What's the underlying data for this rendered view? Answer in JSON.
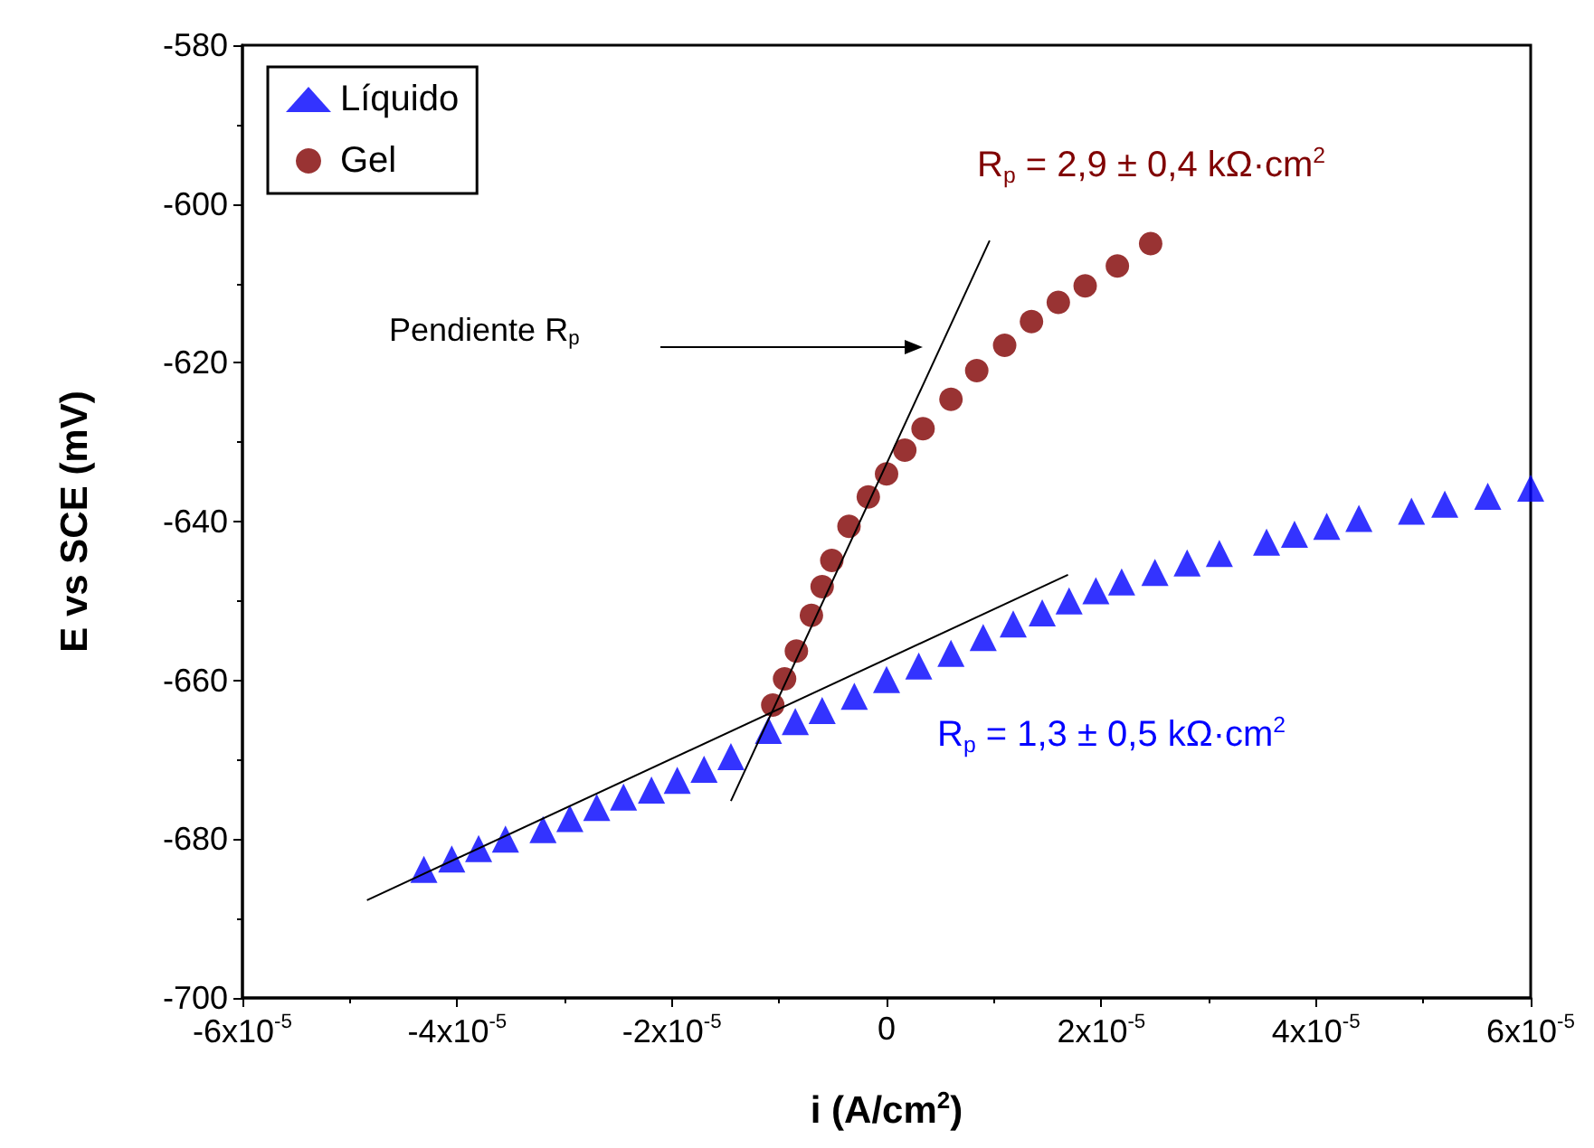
{
  "chart_data": {
    "type": "scatter",
    "xlabel": "i (A/cm$^{2}$)",
    "ylabel": "E vs SCE (mV)",
    "xlim": [
      -6e-05,
      6e-05
    ],
    "ylim": [
      -700,
      -580
    ],
    "xticks": [
      {
        "value": -6e-05,
        "label": "-6x10$^{-5}$"
      },
      {
        "value": -4e-05,
        "label": "-4x10$^{-5}$"
      },
      {
        "value": -2e-05,
        "label": "-2x10$^{-5}$"
      },
      0,
      {
        "value": 2e-05,
        "label": "2x10$^{-5}$"
      },
      {
        "value": 4e-05,
        "label": "4x10$^{-5}$"
      },
      {
        "value": 6e-05,
        "label": "6x10$^{-5}$"
      }
    ],
    "yticks": [
      -700,
      -680,
      -660,
      -640,
      -620,
      -600,
      -580
    ],
    "grid": false,
    "legend": "top left",
    "series": [
      {
        "name": "Líquido",
        "color": "#0000ff",
        "marker": "triangle",
        "x": [
          -4.31e-05,
          -4.05e-05,
          -3.8e-05,
          -3.55e-05,
          -3.2e-05,
          -2.95e-05,
          -2.7e-05,
          -2.45e-05,
          -2.19e-05,
          -1.95e-05,
          -1.7e-05,
          -1.45e-05,
          -1.1e-05,
          -8.5e-06,
          -6e-06,
          -3e-06,
          0,
          3e-06,
          6e-06,
          9e-06,
          1.18e-05,
          1.45e-05,
          1.7e-05,
          1.95e-05,
          2.19e-05,
          2.5e-05,
          2.8e-05,
          3.1e-05,
          3.54e-05,
          3.8e-05,
          4.1e-05,
          4.4e-05,
          4.89e-05,
          5.2e-05,
          5.6e-05,
          6e-05
        ],
        "values": [
          -683.8,
          -682.5,
          -681.2,
          -680,
          -678.8,
          -677.4,
          -676,
          -674.7,
          -673.8,
          -672.6,
          -671.2,
          -669.6,
          -666.3,
          -665.2,
          -663.8,
          -662,
          -659.9,
          -658.2,
          -656.6,
          -654.6,
          -652.9,
          -651.5,
          -650,
          -648.7,
          -647.6,
          -646.4,
          -645.2,
          -644,
          -642.6,
          -641.6,
          -640.6,
          -639.6,
          -638.7,
          -637.8,
          -636.8,
          -635.8
        ]
      },
      {
        "name": "Gel",
        "color": "#800000",
        "marker": "circle",
        "x": [
          -1.06e-05,
          -9.5e-06,
          -8.4e-06,
          -7e-06,
          -6e-06,
          -5.1e-06,
          -3.5e-06,
          -1.7e-06,
          0,
          1.7e-06,
          3.4e-06,
          6e-06,
          8.4e-06,
          1.1e-05,
          1.35e-05,
          1.6e-05,
          1.85e-05,
          2.15e-05,
          2.46e-05
        ],
        "values": [
          -663.1,
          -659.8,
          -656.3,
          -651.8,
          -648.2,
          -644.9,
          -640.6,
          -636.9,
          -634,
          -631,
          -628.3,
          -624.6,
          -621,
          -617.8,
          -614.8,
          -612.4,
          -610.3,
          -607.8,
          -605
        ]
      },
      {
        "type": "line",
        "color": "#000000",
        "marker": "none",
        "x": [
          -4.84e-05,
          1.69e-05
        ],
        "values": [
          -687.7,
          -646.7
        ]
      },
      {
        "type": "line",
        "color": "#000000",
        "marker": "none",
        "x": [
          -1.45e-05,
          9.6e-06
        ],
        "values": [
          -675.2,
          -604.6
        ]
      }
    ],
    "annotations": [
      "R$_{p}$ = 2,9 ± 0,4 kΩ·cm$^{2}$",
      "R$_{p}$ = 1,3 ± 0,5 kΩ·cm$^{2}$",
      "Pendiente R$_{p}$"
    ]
  }
}
